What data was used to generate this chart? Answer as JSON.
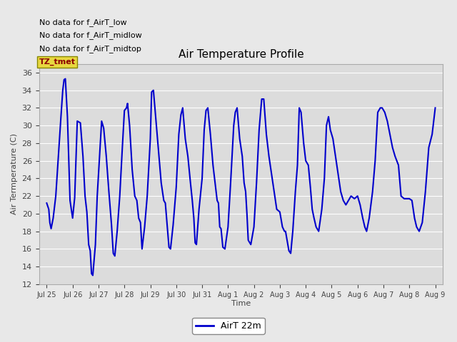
{
  "title": "Air Temperature Profile",
  "xlabel": "Time",
  "ylabel": "Air Termperature (C)",
  "ylim": [
    12,
    37
  ],
  "yticks": [
    12,
    14,
    16,
    18,
    20,
    22,
    24,
    26,
    28,
    30,
    32,
    34,
    36
  ],
  "line_color": "#0000cc",
  "bg_color": "#e8e8e8",
  "plot_bg_color": "#dcdcdc",
  "annotations_text": [
    "No data for f_AirT_low",
    "No data for f_AirT_midlow",
    "No data for f_AirT_midtop"
  ],
  "tz_label": "TZ_tmet",
  "legend_label": "AirT 22m",
  "x_tick_labels": [
    "Jul 25",
    "Jul 26",
    "Jul 27",
    "Jul 28",
    "Jul 29",
    "Jul 30",
    "Jul 31",
    "Aug 1",
    "Aug 2",
    "Aug 3",
    "Aug 4",
    "Aug 5",
    "Aug 6",
    "Aug 7",
    "Aug 8",
    "Aug 9"
  ],
  "t": [
    0.0,
    0.08,
    0.12,
    0.17,
    0.25,
    0.35,
    0.45,
    0.55,
    0.62,
    0.67,
    0.72,
    0.8,
    0.9,
    1.0,
    1.08,
    1.18,
    1.3,
    1.4,
    1.48,
    1.55,
    1.62,
    1.68,
    1.73,
    1.78,
    1.88,
    1.95,
    2.05,
    2.12,
    2.2,
    2.3,
    2.4,
    2.5,
    2.57,
    2.63,
    2.72,
    2.82,
    2.92,
    3.0,
    3.08,
    3.12,
    3.2,
    3.3,
    3.4,
    3.48,
    3.55,
    3.62,
    3.68,
    3.78,
    3.88,
    4.0,
    4.05,
    4.12,
    4.22,
    4.32,
    4.42,
    4.52,
    4.58,
    4.65,
    4.72,
    4.78,
    4.88,
    5.0,
    5.1,
    5.18,
    5.25,
    5.35,
    5.45,
    5.55,
    5.62,
    5.68,
    5.73,
    5.78,
    5.88,
    6.0,
    6.08,
    6.15,
    6.22,
    6.32,
    6.42,
    6.52,
    6.58,
    6.63,
    6.68,
    6.73,
    6.8,
    6.88,
    7.0,
    7.1,
    7.22,
    7.28,
    7.35,
    7.45,
    7.55,
    7.62,
    7.68,
    7.73,
    7.78,
    7.88,
    8.0,
    8.1,
    8.2,
    8.3,
    8.38,
    8.48,
    8.58,
    8.68,
    8.78,
    8.88,
    9.0,
    9.1,
    9.18,
    9.22,
    9.28,
    9.35,
    9.42,
    9.5,
    9.6,
    9.68,
    9.75,
    9.82,
    9.92,
    10.0,
    10.1,
    10.18,
    10.25,
    10.32,
    10.4,
    10.5,
    10.62,
    10.72,
    10.8,
    10.88,
    10.95,
    11.05,
    11.15,
    11.25,
    11.35,
    11.45,
    11.55,
    11.65,
    11.75,
    11.88,
    12.0,
    12.1,
    12.2,
    12.28,
    12.35,
    12.45,
    12.58,
    12.68,
    12.78,
    12.88,
    12.95,
    13.05,
    13.15,
    13.25,
    13.35,
    13.45,
    13.58,
    13.68,
    13.8,
    14.0,
    14.1,
    14.2,
    14.28,
    14.38,
    14.5,
    14.62,
    14.75,
    14.88,
    15.0
  ],
  "temp": [
    21.2,
    20.5,
    19.0,
    18.3,
    19.5,
    22.0,
    26.5,
    31.0,
    34.0,
    35.2,
    35.3,
    31.0,
    21.5,
    19.5,
    21.8,
    30.5,
    30.3,
    26.5,
    22.0,
    20.2,
    16.5,
    15.8,
    13.2,
    13.0,
    16.5,
    22.0,
    27.0,
    30.5,
    29.7,
    26.5,
    22.5,
    18.8,
    15.5,
    15.2,
    18.0,
    22.0,
    27.5,
    31.7,
    32.0,
    32.5,
    30.0,
    25.0,
    22.0,
    21.5,
    19.5,
    19.0,
    16.0,
    18.5,
    22.0,
    28.5,
    33.8,
    34.0,
    30.5,
    27.0,
    23.5,
    21.5,
    21.2,
    18.7,
    16.2,
    16.0,
    18.7,
    23.0,
    29.0,
    31.2,
    32.0,
    28.5,
    26.5,
    23.5,
    21.5,
    19.5,
    16.7,
    16.5,
    20.5,
    24.0,
    29.5,
    31.7,
    32.0,
    29.0,
    25.5,
    23.0,
    21.5,
    21.2,
    18.5,
    18.3,
    16.2,
    16.0,
    18.5,
    23.5,
    30.0,
    31.5,
    32.0,
    28.5,
    26.5,
    23.5,
    22.5,
    20.0,
    17.0,
    16.5,
    18.5,
    23.5,
    29.5,
    33.0,
    33.0,
    29.0,
    26.5,
    24.5,
    22.5,
    20.5,
    20.2,
    18.5,
    18.0,
    18.0,
    17.0,
    15.8,
    15.5,
    18.0,
    22.5,
    25.5,
    32.0,
    31.5,
    28.0,
    26.0,
    25.5,
    23.0,
    20.5,
    19.5,
    18.5,
    18.0,
    20.5,
    24.0,
    30.0,
    31.0,
    29.5,
    28.5,
    26.5,
    24.5,
    22.5,
    21.5,
    21.0,
    21.5,
    22.0,
    21.7,
    22.0,
    21.0,
    19.5,
    18.5,
    18.0,
    19.5,
    22.5,
    26.0,
    31.5,
    32.0,
    32.0,
    31.5,
    30.5,
    29.0,
    27.5,
    26.5,
    25.5,
    22.0,
    21.7,
    21.7,
    21.5,
    19.5,
    18.5,
    18.0,
    19.0,
    22.5,
    27.5,
    29.0,
    32.0
  ]
}
